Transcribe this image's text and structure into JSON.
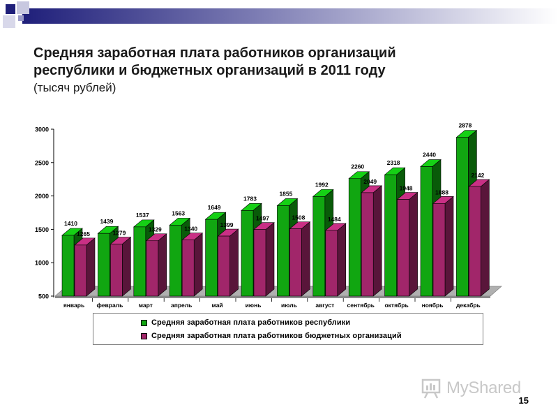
{
  "slide": {
    "title_line1": "Средняя заработная плата работников организаций",
    "title_line2": "республики и бюджетных организаций в 2011 году",
    "subtitle": "(тысяч рублей)",
    "page_number": "15",
    "watermark": "MyShared"
  },
  "colors": {
    "band_dark": "#1f1f7a",
    "band_mid": "#8c8cbf",
    "series1": "#11a611",
    "series2": "#a1266a",
    "floor": "#b0b0b0"
  },
  "chart_data": {
    "type": "bar",
    "title": "Средняя заработная плата работников организаций республики и бюджетных организаций в 2011 году",
    "subtitle": "(тысяч рублей)",
    "categories": [
      "январь",
      "февраль",
      "март",
      "апрель",
      "май",
      "июнь",
      "июль",
      "август",
      "сентябрь",
      "октябрь",
      "ноябрь",
      "декабрь"
    ],
    "series": [
      {
        "name": "Средняя заработная плата работников республики",
        "values": [
          1410,
          1439,
          1537,
          1563,
          1649,
          1783,
          1855,
          1992,
          2260,
          2318,
          2440,
          2878
        ]
      },
      {
        "name": "Средняя заработная плата работников бюджетных организаций",
        "values": [
          1265,
          1279,
          1329,
          1340,
          1399,
          1497,
          1508,
          1484,
          2049,
          1948,
          1888,
          2142
        ]
      }
    ],
    "value_labels": [
      [
        "1410",
        "1439",
        "1537",
        "1563",
        "1649",
        "1783",
        "1855",
        "1992",
        "2260",
        "2318",
        "2440",
        "2878"
      ],
      [
        "1265",
        "1279",
        "1329",
        "1340",
        "1399",
        "1497",
        "1508",
        "1484",
        "2049",
        "1948",
        "1888",
        "2142"
      ]
    ],
    "ylim": [
      500,
      3000
    ],
    "yticks": [
      500,
      1000,
      1500,
      2000,
      2500,
      3000
    ],
    "ytick_labels": [
      "500",
      "1000",
      "1500",
      "2000",
      "2500",
      "3000"
    ],
    "grid": false,
    "style": "3d-columns",
    "legend": {
      "position": "bottom",
      "entries": [
        "Средняя заработная плата работников республики",
        "Средняя заработная плата работников бюджетных организаций"
      ]
    }
  }
}
